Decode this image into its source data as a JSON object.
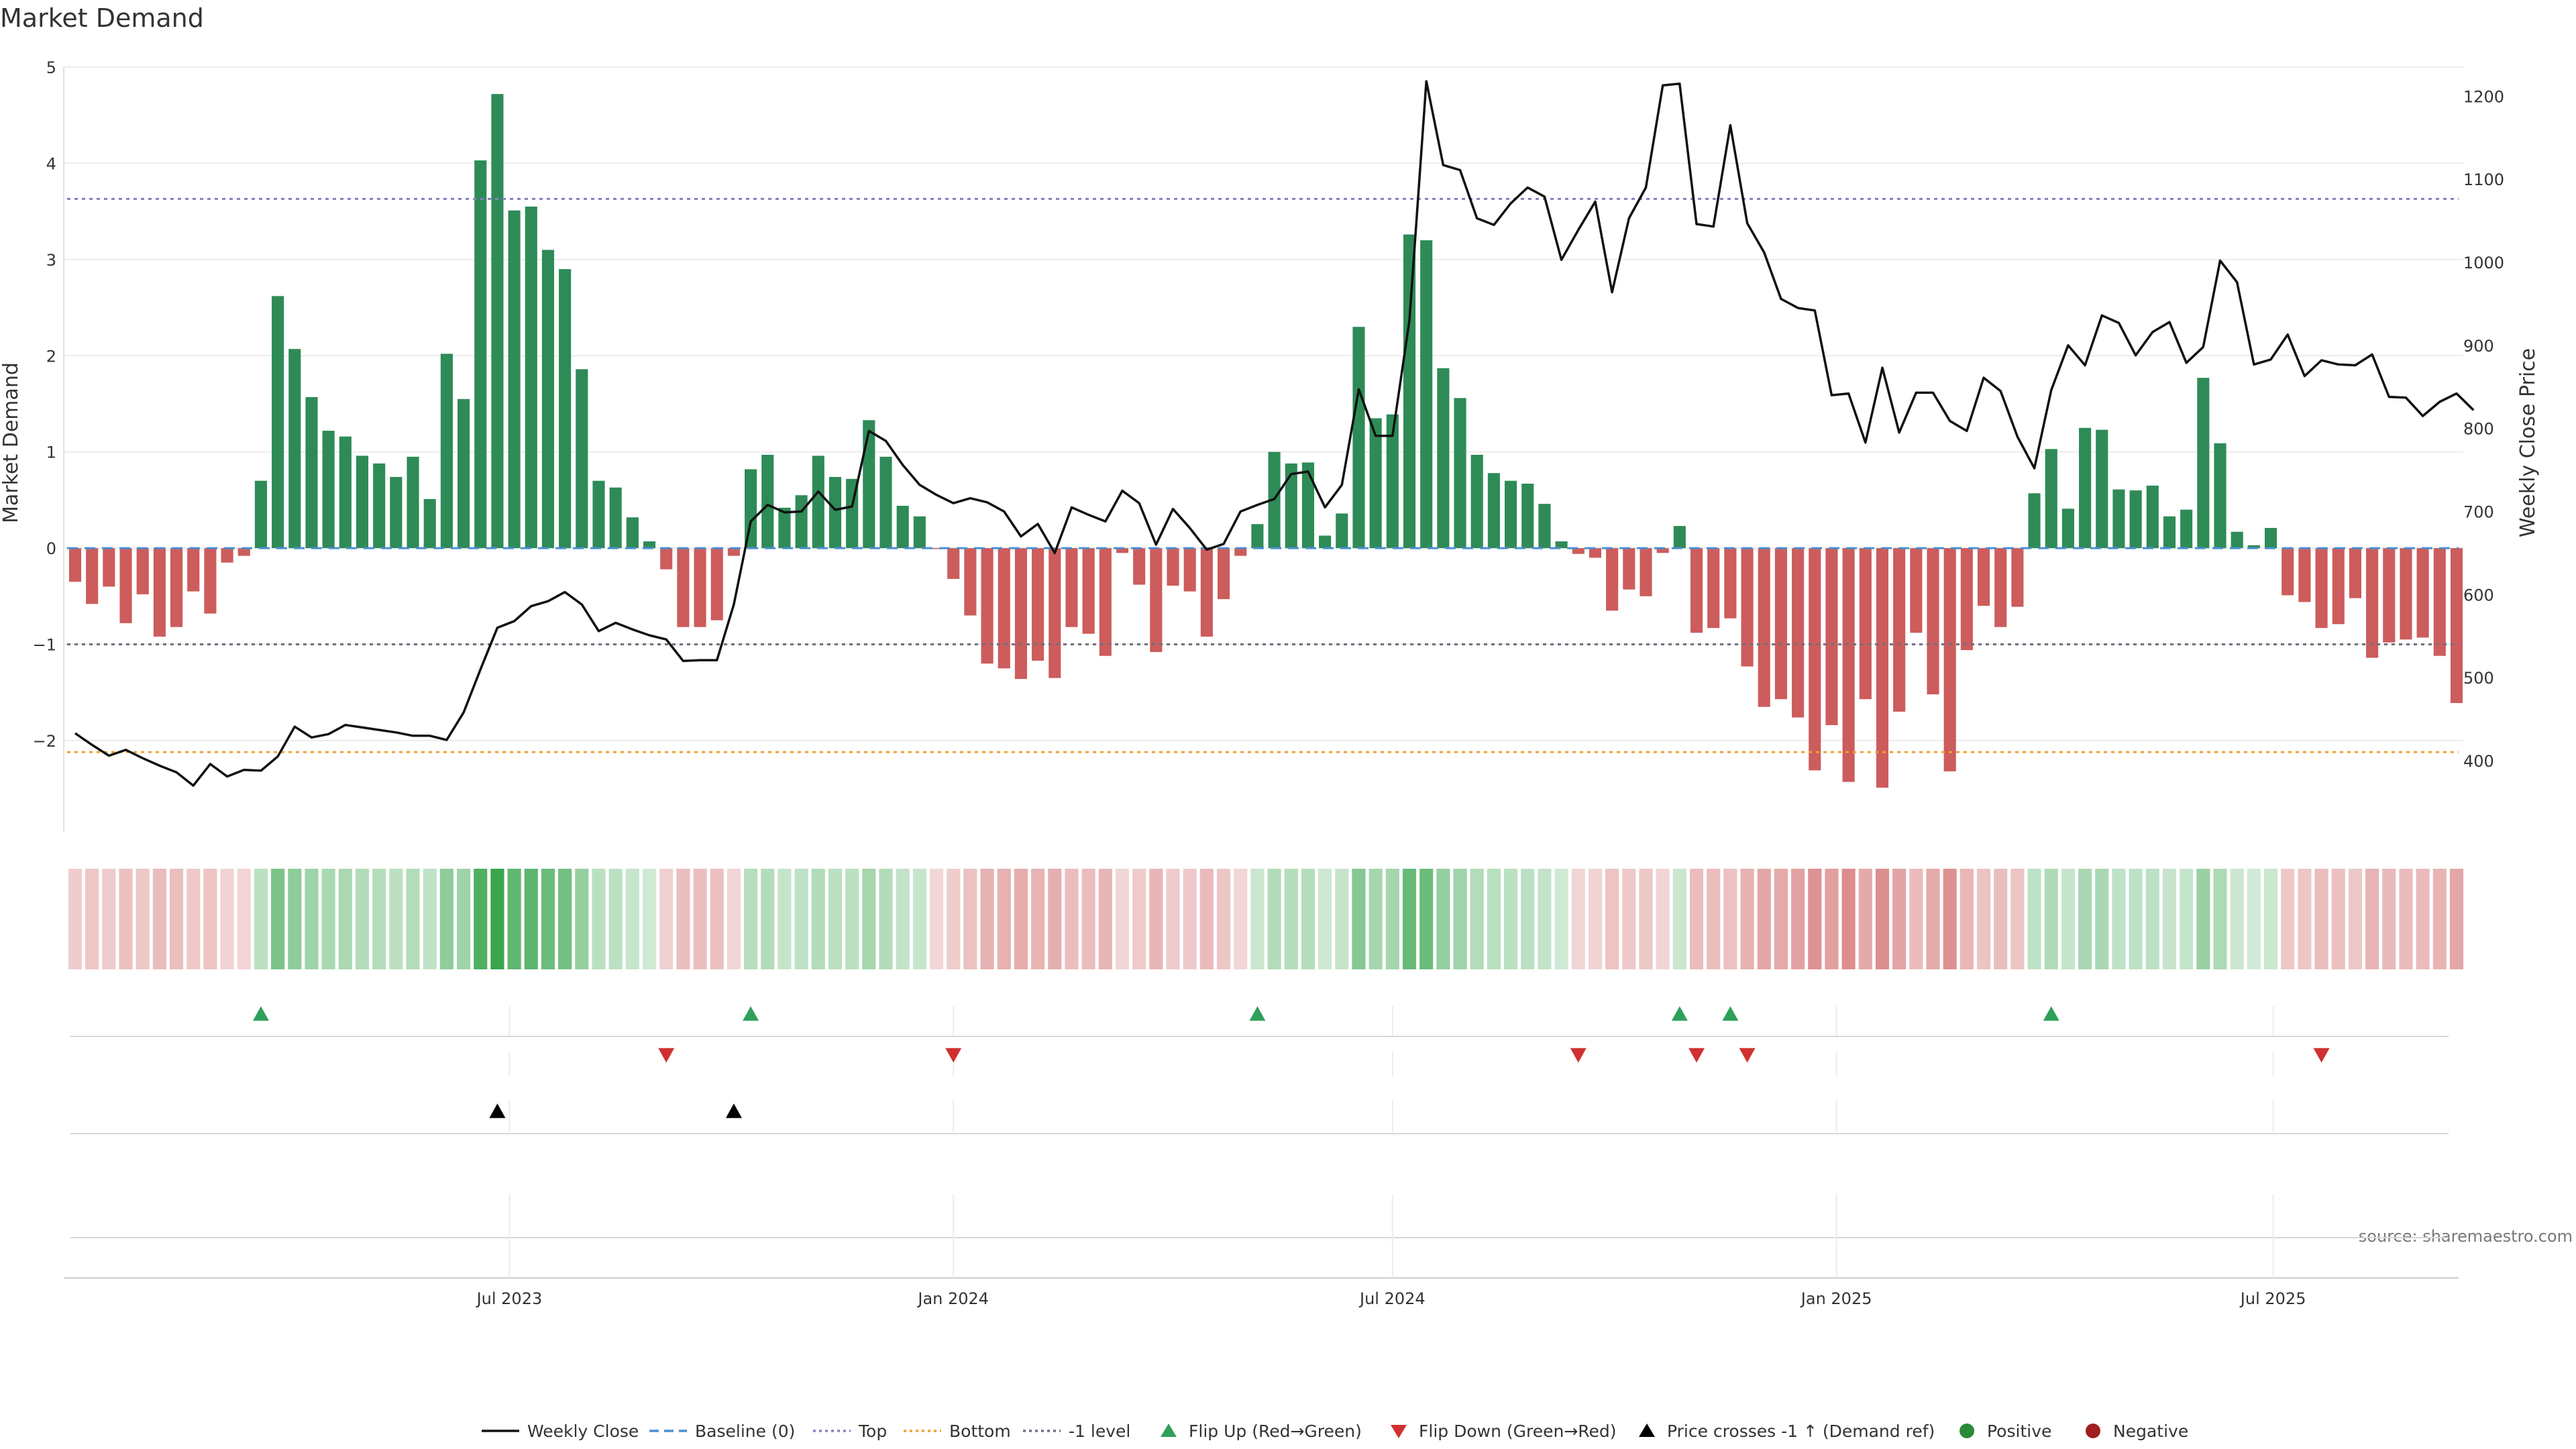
{
  "chart_data": {
    "type": "bar",
    "title": "Market Demand",
    "ylabel": "Market Demand",
    "y2label": "Weekly Close Price",
    "ylim": [
      -2.9,
      5.0
    ],
    "y2lim": [
      320,
      1235
    ],
    "yticks": [
      -2,
      -1,
      0,
      1,
      2,
      3,
      4,
      5
    ],
    "ytick_labels": [
      "−2",
      "−1",
      "0",
      "1",
      "2",
      "3",
      "4",
      "5"
    ],
    "y2ticks": [
      400,
      500,
      600,
      700,
      800,
      900,
      1000,
      1100,
      1200
    ],
    "x_start": "2023-01-02",
    "x_end": "2025-10-06",
    "xticks": [
      {
        "date": "2023-07-01",
        "label": "Jul 2023"
      },
      {
        "date": "2024-01-01",
        "label": "Jan 2024"
      },
      {
        "date": "2024-07-01",
        "label": "Jul 2024"
      },
      {
        "date": "2025-01-01",
        "label": "Jan 2025"
      },
      {
        "date": "2025-07-01",
        "label": "Jul 2025"
      }
    ],
    "reference_lines": [
      {
        "name": "Top",
        "value": 3.63,
        "color": "#8a7fc4"
      },
      {
        "name": "Bottom",
        "value": -2.12,
        "color": "#f0a030"
      },
      {
        "name": "-1 level",
        "value": -1.0,
        "color": "#707080"
      },
      {
        "name": "Baseline (0)",
        "value": 0,
        "color": "#4a8fd0"
      }
    ],
    "demand": [
      -0.35,
      -0.58,
      -0.4,
      -0.78,
      -0.48,
      -0.92,
      -0.82,
      -0.45,
      -0.68,
      -0.15,
      -0.08,
      0.7,
      2.62,
      2.07,
      1.57,
      1.22,
      1.16,
      0.96,
      0.88,
      0.74,
      0.95,
      0.51,
      2.02,
      1.55,
      4.03,
      4.72,
      3.51,
      3.55,
      3.1,
      2.9,
      1.86,
      0.7,
      0.63,
      0.32,
      0.07,
      -0.22,
      -0.82,
      -0.82,
      -0.75,
      -0.08,
      0.82,
      0.97,
      0.42,
      0.55,
      0.96,
      0.74,
      0.72,
      1.33,
      0.95,
      0.44,
      0.33,
      -0.01,
      -0.32,
      -0.7,
      -1.2,
      -1.25,
      -1.36,
      -1.17,
      -1.35,
      -0.82,
      -0.89,
      -1.12,
      -0.05,
      -0.38,
      -1.08,
      -0.39,
      -0.45,
      -0.92,
      -0.53,
      -0.08,
      0.25,
      1.0,
      0.88,
      0.89,
      0.13,
      0.36,
      2.3,
      1.35,
      1.39,
      3.26,
      3.2,
      1.87,
      1.56,
      0.97,
      0.78,
      0.7,
      0.67,
      0.46,
      0.07,
      -0.06,
      -0.1,
      -0.65,
      -0.43,
      -0.5,
      -0.05,
      0.23,
      -0.88,
      -0.83,
      -0.73,
      -1.23,
      -1.65,
      -1.57,
      -1.76,
      -2.31,
      -1.84,
      -2.43,
      -1.57,
      -2.49,
      -1.7,
      -0.88,
      -1.52,
      -2.32,
      -1.06,
      -0.6,
      -0.82,
      -0.61,
      0.57,
      1.03,
      0.41,
      1.25,
      1.23,
      0.61,
      0.6,
      0.65,
      0.33,
      0.4,
      1.77,
      1.09,
      0.17,
      0.03,
      0.21,
      -0.49,
      -0.56,
      -0.83,
      -0.79,
      -0.52,
      -1.14,
      -0.98,
      -0.95,
      -0.93,
      -1.12,
      -1.61
    ],
    "weekly_close": [
      433,
      419,
      406,
      413,
      403,
      394,
      386,
      370,
      396,
      381,
      389,
      388,
      405,
      441,
      428,
      432,
      443,
      440,
      437,
      434,
      430,
      430,
      425,
      458,
      510,
      560,
      568,
      586,
      592,
      603,
      588,
      556,
      566,
      558,
      551,
      546,
      520,
      521,
      521,
      588,
      688,
      708,
      699,
      700,
      724,
      702,
      706,
      797,
      785,
      756,
      732,
      720,
      710,
      716,
      711,
      700,
      670,
      685,
      650,
      705,
      696,
      688,
      725,
      710,
      660,
      703,
      680,
      654,
      661,
      700,
      708,
      715,
      745,
      748,
      705,
      732,
      847,
      791,
      791,
      930,
      1218,
      1117,
      1111,
      1053,
      1045,
      1071,
      1090,
      1079,
      1003,
      1039,
      1073,
      964,
      1053,
      1090,
      1213,
      1215,
      1046,
      1043,
      1165,
      1047,
      1012,
      956,
      945,
      942,
      840,
      842,
      783,
      873,
      795,
      843,
      843,
      809,
      797,
      861,
      845,
      790,
      752,
      846,
      900,
      876,
      936,
      927,
      888,
      916,
      928,
      879,
      898,
      1002,
      976,
      877,
      883,
      913,
      863,
      882,
      877,
      876,
      889,
      838,
      837,
      815,
      832,
      842,
      822
    ],
    "flip_up_weeks": [
      11,
      40,
      70,
      95,
      98,
      117
    ],
    "flip_down_weeks": [
      35,
      52,
      89,
      96,
      99,
      133
    ],
    "price_cross_weeks": [
      25,
      39
    ],
    "legend": [
      {
        "label": "Weekly Close",
        "kind": "line",
        "color": "#111111"
      },
      {
        "label": "Baseline (0)",
        "kind": "dash",
        "color": "#4a8fd0"
      },
      {
        "label": "Top",
        "kind": "dot",
        "color": "#8a7fc4"
      },
      {
        "label": "Bottom",
        "kind": "dot",
        "color": "#f0a030"
      },
      {
        "label": "-1 level",
        "kind": "dot",
        "color": "#707080"
      },
      {
        "label": "Flip Up (Red→Green)",
        "kind": "tri-up",
        "color": "#2ea05a"
      },
      {
        "label": "Flip Down (Green→Red)",
        "kind": "tri-down",
        "color": "#d03030"
      },
      {
        "label": "Price crosses -1 ↑ (Demand ref)",
        "kind": "tri-up",
        "color": "#000000"
      },
      {
        "label": "Positive",
        "kind": "dot-circle",
        "color": "#2a8a3a"
      },
      {
        "label": "Negative",
        "kind": "dot-circle",
        "color": "#a02020"
      }
    ],
    "source": "source: sharemaestro.com",
    "colors": {
      "positive": "#2e8b57",
      "negative": "#cd5c5c",
      "price": "#111111"
    }
  }
}
